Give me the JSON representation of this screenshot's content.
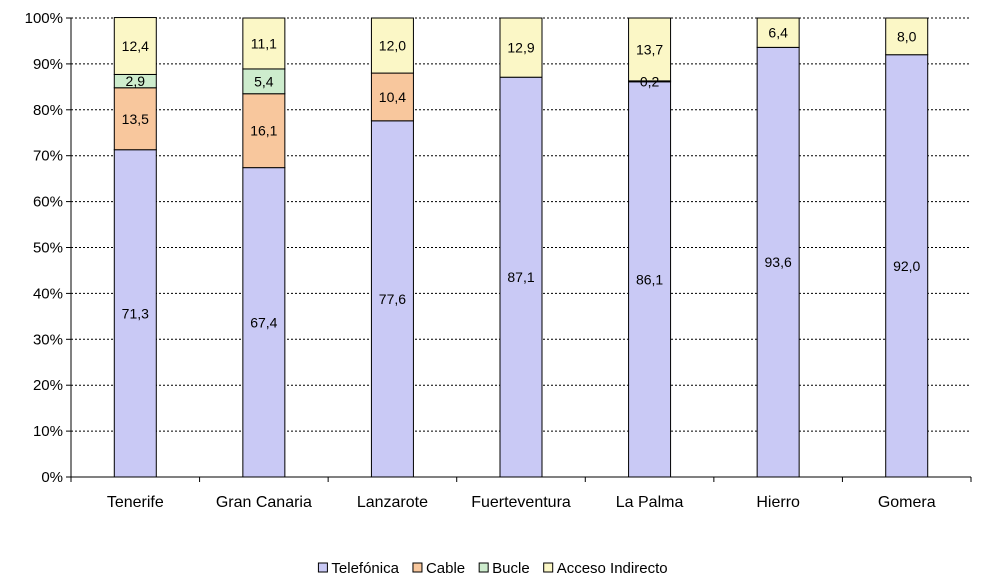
{
  "chart_data": {
    "type": "bar",
    "stacked": true,
    "percent": true,
    "categories": [
      "Tenerife",
      "Gran Canaria",
      "Lanzarote",
      "Fuerteventura",
      "La Palma",
      "Hierro",
      "Gomera"
    ],
    "series": [
      {
        "name": "Telefónica",
        "color": "#c9c9f5",
        "values": [
          71.3,
          67.4,
          77.6,
          87.1,
          86.1,
          93.6,
          92.0
        ],
        "labels": [
          "71,3",
          "67,4",
          "77,6",
          "87,1",
          "86,1",
          "93,6",
          "92,0"
        ]
      },
      {
        "name": "Cable",
        "color": "#f8c79d",
        "values": [
          13.5,
          16.1,
          10.4,
          null,
          null,
          null,
          null
        ],
        "labels": [
          "13,5",
          "16,1",
          "10,4",
          "",
          "",
          "",
          ""
        ]
      },
      {
        "name": "Bucle",
        "color": "#cdeccd",
        "values": [
          2.9,
          5.4,
          null,
          null,
          0.2,
          null,
          null
        ],
        "labels": [
          "2,9",
          "5,4",
          "",
          "",
          "0,2",
          "",
          ""
        ]
      },
      {
        "name": "Acceso Indirecto",
        "color": "#fbf7c6",
        "values": [
          12.4,
          11.1,
          12.0,
          12.9,
          13.7,
          6.4,
          8.0
        ],
        "labels": [
          "12,4",
          "11,1",
          "12,0",
          "12,9",
          "13,7",
          "6,4",
          "8,0"
        ]
      }
    ],
    "ylim": [
      0,
      100
    ],
    "yticks": [
      "0%",
      "10%",
      "20%",
      "30%",
      "40%",
      "50%",
      "60%",
      "70%",
      "80%",
      "90%",
      "100%"
    ],
    "grid": true,
    "legend_position": "bottom"
  }
}
